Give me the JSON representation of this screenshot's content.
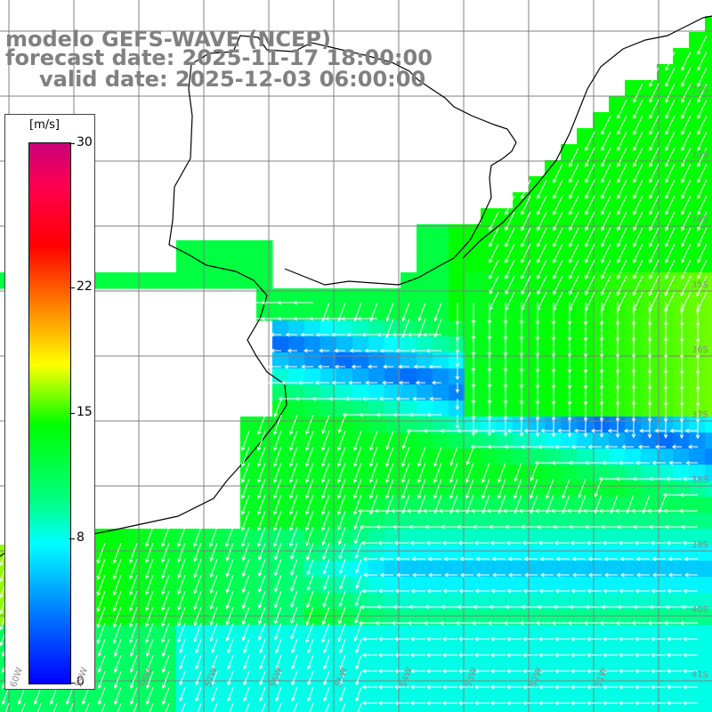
{
  "title": {
    "line1": "modelo GEFS-WAVE (NCEP)",
    "line2": "forecast date: 2025-11-17 18:00:00",
    "line3": "valid date: 2025-12-03 06:00:00"
  },
  "colorbar": {
    "unit": "[m/s]",
    "ticks": [
      {
        "value": 30,
        "label": "30"
      },
      {
        "value": 22,
        "label": "22"
      },
      {
        "value": 15,
        "label": "15"
      },
      {
        "value": 8,
        "label": "8"
      },
      {
        "value": 0,
        "label": "0"
      }
    ],
    "min": 0,
    "max": 30
  },
  "grid": {
    "lon_labels": [
      "60W",
      "59W",
      "58W",
      "57W",
      "56W",
      "55W",
      "54W",
      "53W",
      "52W",
      "51W"
    ],
    "lat_labels": [
      "32S",
      "33S",
      "34S",
      "35S",
      "36S",
      "37S",
      "38S",
      "39S",
      "40S",
      "41S"
    ]
  },
  "colors": {
    "land": "#ffffff",
    "coast": "#000000",
    "gridline": "#808080",
    "arrow": "#ffffff",
    "title_text": "#808080"
  }
}
